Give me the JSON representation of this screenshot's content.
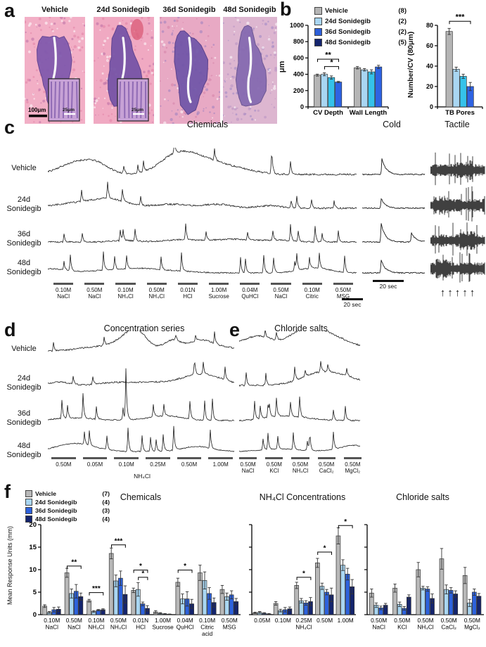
{
  "panels": {
    "a": "a",
    "b": "b",
    "c": "c",
    "d": "d",
    "e": "e",
    "f": "f"
  },
  "treatments": [
    "Vehicle",
    "24d Sonidegib",
    "36d Sonidegib",
    "48d Sonidegib"
  ],
  "panel_a": {
    "images": [
      {
        "label": "Vehicle",
        "scale_bar": "100μm",
        "inset": "25μm"
      },
      {
        "label": "24d Sonidegib",
        "inset": "25μm"
      },
      {
        "label": "36d Sonidegib"
      },
      {
        "label": "48d Sonidegib"
      }
    ]
  },
  "panel_b": {
    "legend": [
      {
        "label": "Vehicle",
        "n": "(8)"
      },
      {
        "label": "24d Sonidegib",
        "n": "(2)"
      },
      {
        "label": "36d Sonidegib",
        "n": "(2)"
      },
      {
        "label": "48d Sonidegib",
        "n": "(5)"
      }
    ]
  },
  "panel_c": {
    "title": "Chemicals",
    "cold_title": "Cold",
    "tactile_title": "Tactile",
    "stimuli": [
      {
        "conc": "0.10M",
        "name": "NaCl"
      },
      {
        "conc": "0.50M",
        "name": "NaCl"
      },
      {
        "conc": "0.10M",
        "name": "NH₄Cl"
      },
      {
        "conc": "0.50M",
        "name": "NH₄Cl"
      },
      {
        "conc": "0.01N",
        "name": "HCl"
      },
      {
        "conc": "1.00M",
        "name": "Sucrose"
      },
      {
        "conc": "0.04M",
        "name": "QuHCl"
      },
      {
        "conc": "0.50M",
        "name": "NaCl"
      },
      {
        "conc": "0.10M",
        "name": "Citric"
      },
      {
        "conc": "0.50M",
        "name": "MSG"
      }
    ],
    "scale_label": "20 sec",
    "cold_scale_label": "20 sec",
    "tactile_arrows": "↑↑↑↑↑"
  },
  "panel_d": {
    "title": "Concentration series",
    "stimuli": [
      "0.50M",
      "0.05M",
      "0.10M",
      "0.25M",
      "0.50M",
      "1.00M"
    ],
    "xlabel": "NH₄Cl"
  },
  "panel_e": {
    "title": "Chloride salts",
    "stimuli": [
      {
        "conc": "0.50M",
        "name": "NaCl"
      },
      {
        "conc": "0.50M",
        "name": "KCl"
      },
      {
        "conc": "0.50M",
        "name": "NH₄Cl"
      },
      {
        "conc": "0.50M",
        "name": "CaCl₂"
      },
      {
        "conc": "0.50M",
        "name": "MgCl₂"
      }
    ]
  },
  "panel_f": {
    "legend": [
      {
        "label": "Vehicle",
        "n": "(7)"
      },
      {
        "label": "24d Sonidegib",
        "n": "(4)"
      },
      {
        "label": "36d Sonidegib",
        "n": "(3)"
      },
      {
        "label": "48d Sonidegib",
        "n": "(4)"
      }
    ],
    "ylabel": "Mean Response Units (mm)",
    "titles": [
      "Chemicals",
      "NH₄Cl Concentrations",
      "Chloride salts"
    ]
  },
  "colors": {
    "bars_b": [
      "#b5b5b5",
      "#a9d6f2",
      "#35c2ea",
      "#2e63e3"
    ],
    "legend_b": [
      "#b5b5b5",
      "#a9d6f2",
      "#2d5fd9",
      "#14246d"
    ],
    "palette_f": [
      "#b8b8b8",
      "#a9d6f2",
      "#2d62dd",
      "#14246d"
    ],
    "trace": "#1a1a1a"
  },
  "chart_data": [
    {
      "id": "b_size",
      "type": "bar",
      "ylabel": "μm",
      "ylim": [
        0,
        1000
      ],
      "yticks": [
        0,
        200,
        400,
        600,
        800,
        1000
      ],
      "categories": [
        "CV Depth",
        "Wall Length"
      ],
      "series": [
        {
          "name": "Vehicle",
          "values": [
            390,
            480
          ],
          "errors": [
            12,
            15
          ]
        },
        {
          "name": "24d Sonidegib",
          "values": [
            400,
            455
          ],
          "errors": [
            18,
            15
          ]
        },
        {
          "name": "36d Sonidegib",
          "values": [
            360,
            430
          ],
          "errors": [
            20,
            25
          ]
        },
        {
          "name": "48d Sonidegib",
          "values": [
            305,
            490
          ],
          "errors": [
            8,
            20
          ]
        }
      ],
      "brackets": [
        {
          "cat": 0,
          "from": 0,
          "to": 3,
          "y": 585,
          "label": "**"
        },
        {
          "cat": 0,
          "from": 1,
          "to": 3,
          "y": 495,
          "label": "*"
        }
      ]
    },
    {
      "id": "b_pores",
      "type": "bar",
      "ylabel": "Number/CV (80μm)",
      "ylim": [
        0,
        80
      ],
      "yticks": [
        0,
        20,
        40,
        60,
        80
      ],
      "categories": [
        "TB Pores"
      ],
      "series": [
        {
          "name": "Vehicle",
          "values": [
            74
          ],
          "errors": [
            3
          ]
        },
        {
          "name": "24d Sonidegib",
          "values": [
            37
          ],
          "errors": [
            2
          ]
        },
        {
          "name": "36d Sonidegib",
          "values": [
            30
          ],
          "errors": [
            2
          ]
        },
        {
          "name": "48d Sonidegib",
          "values": [
            20
          ],
          "errors": [
            4
          ]
        }
      ],
      "brackets": [
        {
          "cat": 0,
          "from": 0,
          "to": 3,
          "y": 84,
          "label": "***"
        }
      ]
    },
    {
      "id": "f_chemicals",
      "type": "bar",
      "title": "Chemicals",
      "ylabel": "Mean Response Units (mm)",
      "ylim": [
        0,
        20
      ],
      "yticks": [
        0,
        5,
        10,
        15,
        20
      ],
      "categories": [
        [
          "0.10M",
          "NaCl"
        ],
        [
          "0.50M",
          "NaCl"
        ],
        [
          "0.10M",
          "NH₄Cl"
        ],
        [
          "0.50M",
          "NH₄Cl"
        ],
        [
          "0.01N",
          "HCl"
        ],
        [
          "1.00M",
          "Sucrose"
        ],
        [
          "0.04M",
          "QuHCl"
        ],
        [
          "0.10M",
          "Citric",
          "acid"
        ],
        [
          "0.50M",
          "MSG"
        ]
      ],
      "series": [
        {
          "name": "Vehicle",
          "values": [
            1.9,
            9.3,
            3.1,
            13.6,
            5.4,
            0.6,
            7.2,
            9.3,
            5.6
          ],
          "errors": [
            0.3,
            1.0,
            0.3,
            1.2,
            0.5,
            0.3,
            0.9,
            1.7,
            0.9
          ]
        },
        {
          "name": "24d Sonidegib",
          "values": [
            0.5,
            4.7,
            0.7,
            7.5,
            5.6,
            0.3,
            3.5,
            7.6,
            4.0
          ],
          "errors": [
            0.2,
            1.0,
            0.2,
            1.3,
            1.5,
            0.15,
            1.1,
            1.9,
            0.8
          ]
        },
        {
          "name": "36d Sonidegib",
          "values": [
            1.1,
            5.2,
            1.0,
            8.1,
            2.4,
            0.15,
            3.5,
            4.7,
            4.4
          ],
          "errors": [
            0.5,
            1.5,
            0.15,
            1.6,
            0.4,
            0.1,
            1.6,
            1.3,
            0.9
          ]
        },
        {
          "name": "48d Sonidegib",
          "values": [
            1.2,
            4.0,
            1.1,
            4.5,
            1.4,
            0.1,
            2.4,
            2.7,
            2.9
          ],
          "errors": [
            0.5,
            0.8,
            0.2,
            1.9,
            0.6,
            0.05,
            1.0,
            1.0,
            0.7
          ]
        }
      ],
      "brackets": [
        {
          "cat": 1,
          "from": 0,
          "to": 3,
          "y": 10.8,
          "label": "**"
        },
        {
          "cat": 2,
          "from": 0,
          "to": 3,
          "y": 4.9,
          "label": "***"
        },
        {
          "cat": 3,
          "from": 0,
          "to": 3,
          "y": 15.5,
          "label": "***"
        },
        {
          "cat": 4,
          "from": 0,
          "to": 3,
          "y": 9.9,
          "label": "*"
        },
        {
          "cat": 4,
          "from": 1,
          "to": 3,
          "y": 8.3,
          "label": "*"
        },
        {
          "cat": 6,
          "from": 0,
          "to": 3,
          "y": 9.9,
          "label": "*"
        }
      ]
    },
    {
      "id": "f_nh4cl",
      "type": "bar",
      "title": "NH₄Cl Concentrations",
      "ylim": [
        0,
        20
      ],
      "yticks": [
        0,
        5,
        10,
        15,
        20
      ],
      "xlabel": "NH₄Cl",
      "categories": [
        "0.05M",
        "0.10M",
        "0.25M",
        "0.50M",
        "1.00M"
      ],
      "series": [
        {
          "name": "Vehicle",
          "values": [
            0.4,
            2.5,
            6.5,
            11.5,
            17.5
          ],
          "errors": [
            0.15,
            0.4,
            0.7,
            1.0,
            1.8
          ]
        },
        {
          "name": "24d Sonidegib",
          "values": [
            0.5,
            0.9,
            3.1,
            6.3,
            11.0
          ],
          "errors": [
            0.2,
            0.3,
            0.5,
            0.7,
            1.2
          ]
        },
        {
          "name": "36d Sonidegib",
          "values": [
            0.3,
            1.1,
            2.6,
            5.0,
            9.0
          ],
          "errors": [
            0.15,
            0.5,
            0.5,
            0.6,
            1.3
          ]
        },
        {
          "name": "48d Sonidegib",
          "values": [
            0.15,
            1.3,
            2.9,
            4.4,
            6.2
          ],
          "errors": [
            0.1,
            0.4,
            0.9,
            1.5,
            1.6
          ]
        }
      ],
      "brackets": [
        {
          "cat": 2,
          "from": 0,
          "to": 3,
          "y": 8.3,
          "label": "*"
        },
        {
          "cat": 3,
          "from": 0,
          "to": 3,
          "y": 13.9,
          "label": "*"
        },
        {
          "cat": 4,
          "from": 0,
          "to": 3,
          "y": 19.8,
          "label": "*"
        }
      ]
    },
    {
      "id": "f_chloride",
      "type": "bar",
      "title": "Chloride salts",
      "ylim": [
        0,
        20
      ],
      "yticks": [
        0,
        5,
        10,
        15,
        20
      ],
      "categories": [
        [
          "0.50M",
          "NaCl"
        ],
        [
          "0.50M",
          "KCl"
        ],
        [
          "0.50M",
          "NH₄Cl"
        ],
        [
          "0.50M",
          "CaCl₂"
        ],
        [
          "0.50M",
          "MgCl₂"
        ]
      ],
      "series": [
        {
          "name": "Vehicle",
          "values": [
            4.8,
            5.9,
            10.0,
            12.4,
            8.7
          ],
          "errors": [
            0.9,
            0.9,
            1.6,
            2.3,
            1.8
          ]
        },
        {
          "name": "24d Sonidegib",
          "values": [
            2.1,
            2.3,
            5.9,
            5.6,
            2.6
          ],
          "errors": [
            0.5,
            0.5,
            0.4,
            1.0,
            0.8
          ]
        },
        {
          "name": "36d Sonidegib",
          "values": [
            1.5,
            1.4,
            5.7,
            5.4,
            5.0
          ],
          "errors": [
            0.4,
            0.4,
            0.5,
            0.6,
            0.7
          ]
        },
        {
          "name": "48d Sonidegib",
          "values": [
            2.1,
            3.9,
            3.6,
            4.6,
            4.1
          ],
          "errors": [
            0.4,
            0.5,
            1.0,
            0.7,
            0.6
          ]
        }
      ],
      "brackets": []
    }
  ]
}
